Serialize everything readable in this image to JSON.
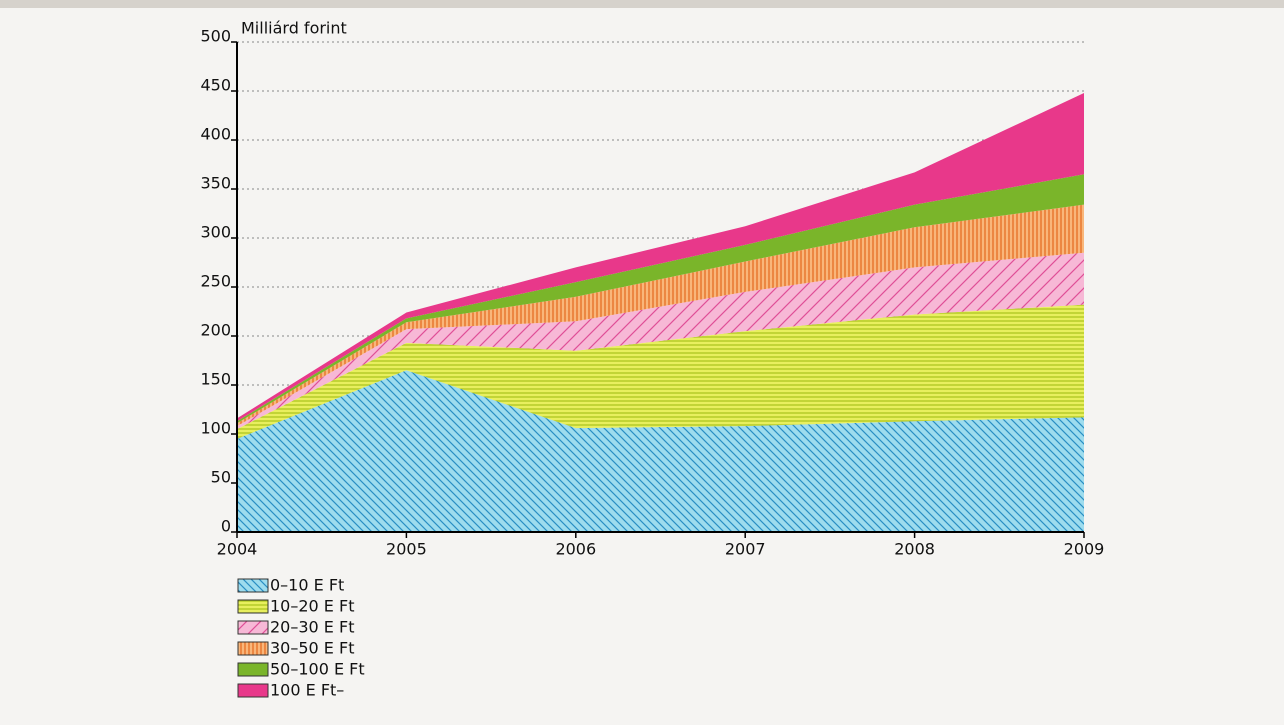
{
  "chart_data": {
    "type": "stacked_area",
    "y_label": "Milliárd forint",
    "x": [
      2004,
      2005,
      2006,
      2007,
      2008,
      2009
    ],
    "xlim": [
      2004,
      2009
    ],
    "xticks": [
      2004,
      2005,
      2006,
      2007,
      2008,
      2009
    ],
    "ylim": [
      0,
      500
    ],
    "yticks": [
      0,
      50,
      100,
      150,
      200,
      250,
      300,
      350,
      400,
      450,
      500
    ],
    "grid": true,
    "series": [
      {
        "name": "0–10 E Ft",
        "color": "#9ddcee",
        "hatch": "diagonal-down",
        "hatch_color": "#2a8fc4",
        "values": [
          95,
          165,
          106,
          108,
          113,
          117
        ]
      },
      {
        "name": "10–20 E Ft",
        "color": "#e8ef5e",
        "hatch": "horizontal",
        "hatch_color": "#a9c21c",
        "values": [
          10,
          28,
          79,
          97,
          109,
          115
        ]
      },
      {
        "name": "20–30 E Ft",
        "color": "#f7b8d6",
        "hatch": "diagonal-up",
        "hatch_color": "#e04f97",
        "values": [
          3,
          14,
          30,
          40,
          48,
          53
        ]
      },
      {
        "name": "30–50 E Ft",
        "color": "#f9b67a",
        "hatch": "vertical",
        "hatch_color": "#e3681c",
        "values": [
          3,
          7,
          25,
          31,
          41,
          49
        ]
      },
      {
        "name": "50–100 E Ft",
        "color": "#7ab52a",
        "hatch": "none",
        "hatch_color": "#7ab52a",
        "values": [
          2,
          4,
          15,
          17,
          23,
          31
        ]
      },
      {
        "name": "100 E Ft–",
        "color": "#e8388a",
        "hatch": "none",
        "hatch_color": "#e8388a",
        "values": [
          3,
          6,
          15,
          19,
          33,
          83
        ]
      }
    ]
  }
}
